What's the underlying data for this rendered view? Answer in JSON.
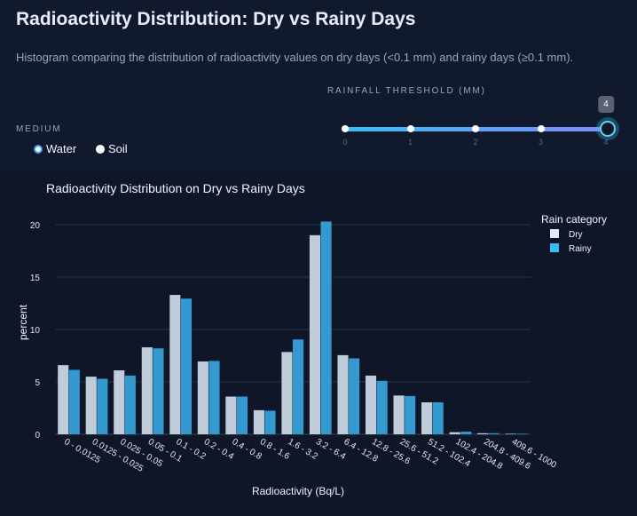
{
  "header": {
    "title": "Radioactivity Distribution: Dry vs Rainy Days",
    "subtitle": "Histogram comparing the distribution of radioactivity values on dry days (<0.1 mm) and rainy days (≥0.1 mm)."
  },
  "controls": {
    "threshold_label": "RAINFALL THRESHOLD (MM)",
    "threshold_value": "4",
    "threshold_ticks": [
      "0",
      "1",
      "2",
      "3",
      "4"
    ],
    "medium_label": "MEDIUM",
    "medium_options": [
      {
        "label": "Water",
        "selected": true
      },
      {
        "label": "Soil",
        "selected": false
      }
    ]
  },
  "chart_data": {
    "type": "bar",
    "title": "Radioactivity Distribution on Dry vs Rainy Days",
    "xlabel": "Radioactivity (Bq/L)",
    "ylabel": "percent",
    "ylim": [
      0,
      21
    ],
    "yticks": [
      "0",
      "5",
      "10",
      "15",
      "20"
    ],
    "grid": true,
    "legend_title": "Rain category",
    "legend_position": "top-right",
    "categories": [
      "0 - 0.0125",
      "0.0125 - 0.025",
      "0.025 - 0.05",
      "0.05 - 0.1",
      "0.1 - 0.2",
      "0.2 - 0.4",
      "0.4 - 0.8",
      "0.8 - 1.6",
      "1.6 - 3.2",
      "3.2 - 6.4",
      "6.4 - 12.8",
      "12.8 - 25.6",
      "25.6 - 51.2",
      "51.2 - 102.4",
      "102.4 - 204.8",
      "204.8 - 409.6",
      "409.6 - 1000"
    ],
    "series": [
      {
        "name": "Dry",
        "color": "#c0ccda",
        "values": [
          6.6,
          5.5,
          6.1,
          8.3,
          13.3,
          6.95,
          3.6,
          2.3,
          7.85,
          19.0,
          7.55,
          5.6,
          3.7,
          3.05,
          0.2,
          0.1,
          0.05
        ]
      },
      {
        "name": "Rainy",
        "color": "#3399d0",
        "values": [
          6.15,
          5.3,
          5.6,
          8.2,
          12.95,
          7.0,
          3.6,
          2.25,
          9.05,
          20.3,
          7.25,
          5.1,
          3.65,
          3.05,
          0.25,
          0.1,
          0.05
        ]
      }
    ]
  }
}
